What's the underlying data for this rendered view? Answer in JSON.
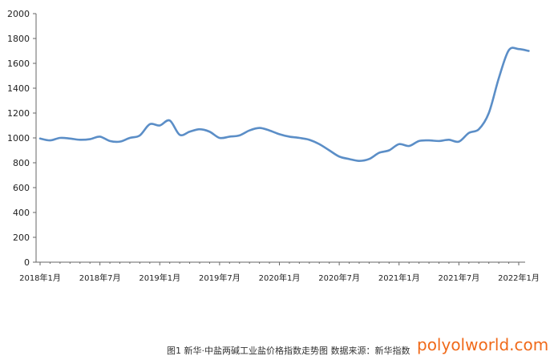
{
  "chart_data": {
    "type": "line",
    "ylim": [
      0,
      2000
    ],
    "yticks": [
      0,
      200,
      400,
      600,
      800,
      1000,
      1200,
      1400,
      1600,
      1800,
      2000
    ],
    "xticks": [
      "2018年1月",
      "2018年7月",
      "2019年1月",
      "2019年7月",
      "2020年1月",
      "2020年7月",
      "2021年1月",
      "2021年7月",
      "2022年1月"
    ],
    "grid": false,
    "legend": "none",
    "series": [
      {
        "color": "#5b8ec7",
        "points": [
          [
            "2018-01",
            995
          ],
          [
            "2018-02",
            980
          ],
          [
            "2018-03",
            1000
          ],
          [
            "2018-04",
            995
          ],
          [
            "2018-05",
            985
          ],
          [
            "2018-06",
            990
          ],
          [
            "2018-07",
            1010
          ],
          [
            "2018-08",
            975
          ],
          [
            "2018-09",
            970
          ],
          [
            "2018-10",
            1000
          ],
          [
            "2018-11",
            1020
          ],
          [
            "2018-12",
            1110
          ],
          [
            "2019-01",
            1100
          ],
          [
            "2019-02",
            1140
          ],
          [
            "2019-03",
            1025
          ],
          [
            "2019-04",
            1050
          ],
          [
            "2019-05",
            1070
          ],
          [
            "2019-06",
            1050
          ],
          [
            "2019-07",
            1000
          ],
          [
            "2019-08",
            1010
          ],
          [
            "2019-09",
            1020
          ],
          [
            "2019-10",
            1060
          ],
          [
            "2019-11",
            1080
          ],
          [
            "2019-12",
            1060
          ],
          [
            "2020-01",
            1030
          ],
          [
            "2020-02",
            1010
          ],
          [
            "2020-03",
            1000
          ],
          [
            "2020-04",
            985
          ],
          [
            "2020-05",
            950
          ],
          [
            "2020-06",
            900
          ],
          [
            "2020-07",
            850
          ],
          [
            "2020-08",
            830
          ],
          [
            "2020-09",
            815
          ],
          [
            "2020-10",
            830
          ],
          [
            "2020-11",
            880
          ],
          [
            "2020-12",
            900
          ],
          [
            "2021-01",
            950
          ],
          [
            "2021-02",
            935
          ],
          [
            "2021-03",
            975
          ],
          [
            "2021-04",
            980
          ],
          [
            "2021-05",
            975
          ],
          [
            "2021-06",
            985
          ],
          [
            "2021-07",
            970
          ],
          [
            "2021-08",
            1040
          ],
          [
            "2021-09",
            1070
          ],
          [
            "2021-10",
            1200
          ],
          [
            "2021-11",
            1480
          ],
          [
            "2021-12",
            1705
          ],
          [
            "2022-01",
            1715
          ],
          [
            "2022-02",
            1700
          ]
        ]
      }
    ]
  },
  "caption": "图1 新华·中盐两碱工业盐价格指数走势图 数据来源：新华指数",
  "watermark": "polyolworld.com"
}
